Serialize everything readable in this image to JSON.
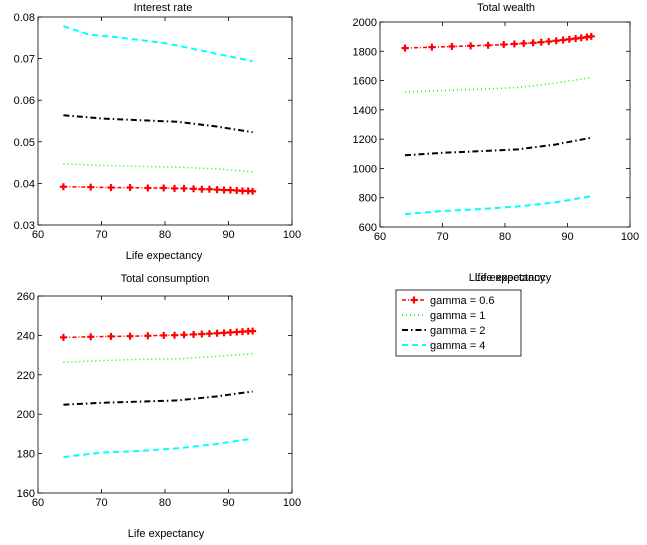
{
  "chart_data": [
    {
      "type": "line",
      "title": "Interest rate",
      "xlabel": "Life expectancy",
      "ylabel": "",
      "xlim": [
        60,
        100
      ],
      "ylim": [
        0.03,
        0.08
      ],
      "xticks": [
        "60",
        "70",
        "80",
        "90",
        "100"
      ],
      "yticks": [
        "0.03",
        "0.04",
        "0.05",
        "0.06",
        "0.07",
        "0.08"
      ],
      "series": [
        {
          "name": "gamma = 0.6",
          "x": [
            64,
            68.3,
            71.5,
            74.5,
            77.3,
            79.8,
            81.5,
            83,
            84.5,
            85.8,
            87,
            88.2,
            89.3,
            90.3,
            91.3,
            92.2,
            93.1,
            93.8
          ],
          "y": [
            0.0392,
            0.0391,
            0.039,
            0.039,
            0.0389,
            0.0389,
            0.0388,
            0.0388,
            0.0387,
            0.0386,
            0.0386,
            0.0385,
            0.0384,
            0.0384,
            0.0383,
            0.0382,
            0.0382,
            0.0381
          ]
        },
        {
          "name": "gamma = 1",
          "x": [
            64,
            70,
            76,
            82,
            88,
            93.8
          ],
          "y": [
            0.0447,
            0.0443,
            0.0441,
            0.0439,
            0.0435,
            0.0428
          ]
        },
        {
          "name": "gamma = 2",
          "x": [
            64,
            70,
            76,
            82,
            88,
            93.8
          ],
          "y": [
            0.0564,
            0.0556,
            0.0552,
            0.0548,
            0.0537,
            0.0523
          ]
        },
        {
          "name": "gamma = 4",
          "x": [
            64,
            68,
            72,
            76,
            80,
            84,
            88,
            93.8
          ],
          "y": [
            0.0778,
            0.0758,
            0.0752,
            0.0745,
            0.0737,
            0.0725,
            0.0712,
            0.0694
          ]
        }
      ]
    },
    {
      "type": "line",
      "title": "Total wealth",
      "xlabel": "Life expectancy",
      "ylabel": "",
      "xlim": [
        60,
        100
      ],
      "ylim": [
        600,
        2000
      ],
      "xticks": [
        "60",
        "70",
        "80",
        "90",
        "100"
      ],
      "yticks": [
        "600",
        "800",
        "1000",
        "1200",
        "1400",
        "1600",
        "1800",
        "2000"
      ],
      "series": [
        {
          "name": "gamma = 0.6",
          "x": [
            64,
            68.3,
            71.5,
            74.5,
            77.3,
            79.8,
            81.5,
            83,
            84.5,
            85.8,
            87,
            88.2,
            89.3,
            90.3,
            91.3,
            92.2,
            93.1,
            93.8
          ],
          "y": [
            1822,
            1828,
            1833,
            1837,
            1841,
            1846,
            1850,
            1854,
            1858,
            1862,
            1867,
            1872,
            1877,
            1882,
            1887,
            1892,
            1897,
            1902
          ]
        },
        {
          "name": "gamma = 1",
          "x": [
            64,
            70,
            76,
            82,
            88,
            93.8
          ],
          "y": [
            1523,
            1532,
            1541,
            1553,
            1582,
            1621
          ]
        },
        {
          "name": "gamma = 2",
          "x": [
            64,
            70,
            76,
            82,
            88,
            93.8
          ],
          "y": [
            1090,
            1107,
            1118,
            1130,
            1163,
            1210
          ]
        },
        {
          "name": "gamma = 4",
          "x": [
            64,
            70,
            76,
            82,
            88,
            93.8
          ],
          "y": [
            688,
            709,
            722,
            740,
            768,
            810
          ]
        }
      ]
    },
    {
      "type": "line",
      "title": "Total consumption",
      "xlabel": "Life expectancy",
      "ylabel": "",
      "xlim": [
        60,
        100
      ],
      "ylim": [
        160,
        260
      ],
      "xticks": [
        "60",
        "70",
        "80",
        "90",
        "100"
      ],
      "yticks": [
        "160",
        "180",
        "200",
        "220",
        "240",
        "260"
      ],
      "series": [
        {
          "name": "gamma = 0.6",
          "x": [
            64,
            68.3,
            71.5,
            74.5,
            77.3,
            79.8,
            81.5,
            83,
            84.5,
            85.8,
            87,
            88.2,
            89.3,
            90.3,
            91.3,
            92.2,
            93.1,
            93.8
          ],
          "y": [
            239.0,
            239.3,
            239.5,
            239.6,
            239.8,
            240.0,
            240.1,
            240.3,
            240.5,
            240.7,
            240.9,
            241.1,
            241.3,
            241.5,
            241.7,
            241.9,
            242.1,
            242.2
          ]
        },
        {
          "name": "gamma = 1",
          "x": [
            64,
            70,
            76,
            82,
            88,
            93.8
          ],
          "y": [
            226.3,
            227.2,
            227.8,
            228.1,
            229.3,
            230.7
          ]
        },
        {
          "name": "gamma = 2",
          "x": [
            64,
            70,
            76,
            82,
            88,
            93.8
          ],
          "y": [
            204.8,
            205.8,
            206.4,
            207.0,
            209.0,
            211.5
          ]
        },
        {
          "name": "gamma = 4",
          "x": [
            64,
            70,
            76,
            82,
            88,
            93.8
          ],
          "y": [
            178.2,
            180.5,
            181.3,
            182.7,
            184.8,
            187.6
          ]
        }
      ]
    }
  ],
  "legend": {
    "title": "Life expectancy",
    "placement": "bottom-right panel",
    "entries": [
      {
        "label": "gamma = 0.6",
        "color": "#ff0000",
        "style": "dashdot-plus"
      },
      {
        "label": "gamma = 1",
        "color": "#00ff00",
        "style": "dotted"
      },
      {
        "label": "gamma = 2",
        "color": "#000000",
        "style": "dashdot"
      },
      {
        "label": "gamma = 4",
        "color": "#00ffff",
        "style": "dashed"
      }
    ]
  },
  "series_colors": [
    "#ff0000",
    "#00ff00",
    "#000000",
    "#00ffff"
  ]
}
